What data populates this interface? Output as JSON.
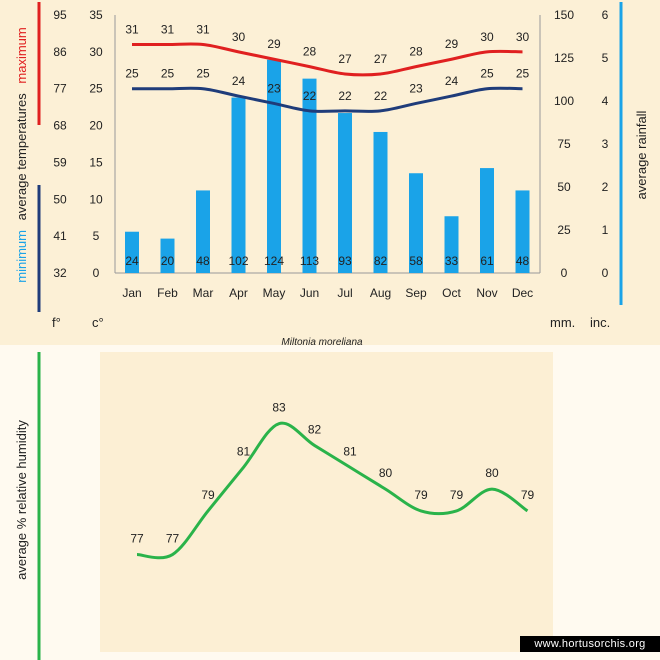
{
  "colors": {
    "max_line": "#e02020",
    "min_line": "#1f3c7a",
    "rain_bar": "#1aa3e8",
    "humidity_line": "#2ab34a",
    "rain_axis_bar": "#1aa3e8",
    "max_axis_bar": "#e02020",
    "min_axis_bar": "#1f3c7a",
    "humidity_axis_bar": "#2ab34a"
  },
  "caption": "Miltonia moreliana",
  "watermark": "www.hortusorchis.org",
  "units": {
    "fahrenheit": "f°",
    "celsius": "c°",
    "mm": "mm.",
    "inch": "inc."
  },
  "chart_data": [
    {
      "type": "bar+line",
      "title": "",
      "categories": [
        "Jan",
        "Feb",
        "Mar",
        "Apr",
        "May",
        "Jun",
        "Jul",
        "Aug",
        "Sep",
        "Oct",
        "Nov",
        "Dec"
      ],
      "series": [
        {
          "name": "maximum",
          "kind": "line",
          "axis": "celsius",
          "values": [
            31,
            31,
            31,
            30,
            29,
            28,
            27,
            27,
            28,
            29,
            30,
            30
          ]
        },
        {
          "name": "minimum",
          "kind": "line",
          "axis": "celsius",
          "values": [
            25,
            25,
            25,
            24,
            23,
            22,
            22,
            22,
            23,
            24,
            25,
            25
          ]
        },
        {
          "name": "average rainfall",
          "kind": "bar",
          "axis": "mm",
          "values": [
            24,
            20,
            48,
            102,
            124,
            113,
            93,
            82,
            58,
            33,
            61,
            48
          ]
        }
      ],
      "ylabel_left": {
        "prefix": "minimum",
        "middle": "average  temperatures",
        "suffix": "maximum"
      },
      "ylabel_right": "average rainfall",
      "axes": {
        "fahrenheit": {
          "ticks": [
            32,
            41,
            50,
            59,
            68,
            77,
            86,
            95
          ]
        },
        "celsius": {
          "ylim": [
            0,
            35
          ],
          "ticks": [
            0,
            5,
            10,
            15,
            20,
            25,
            30,
            35
          ]
        },
        "mm": {
          "ylim": [
            0,
            150
          ],
          "ticks": [
            0,
            25,
            50,
            75,
            100,
            125,
            150
          ]
        },
        "inch": {
          "ticks": [
            0,
            1,
            2,
            3,
            4,
            5,
            6
          ]
        }
      }
    },
    {
      "type": "line",
      "title": "",
      "categories": [
        "Jan",
        "Feb",
        "Mar",
        "Apr",
        "May",
        "Jun",
        "Jul",
        "Aug",
        "Sep",
        "Oct",
        "Nov",
        "Dec"
      ],
      "series": [
        {
          "name": "average % relative humidity",
          "values": [
            77,
            77,
            79,
            81,
            83,
            82,
            81,
            80,
            79,
            79,
            80,
            79
          ]
        }
      ],
      "ylabel": "average %  relative humidity",
      "ylim": [
        74,
        85
      ],
      "grid": false,
      "legend": "none"
    }
  ]
}
